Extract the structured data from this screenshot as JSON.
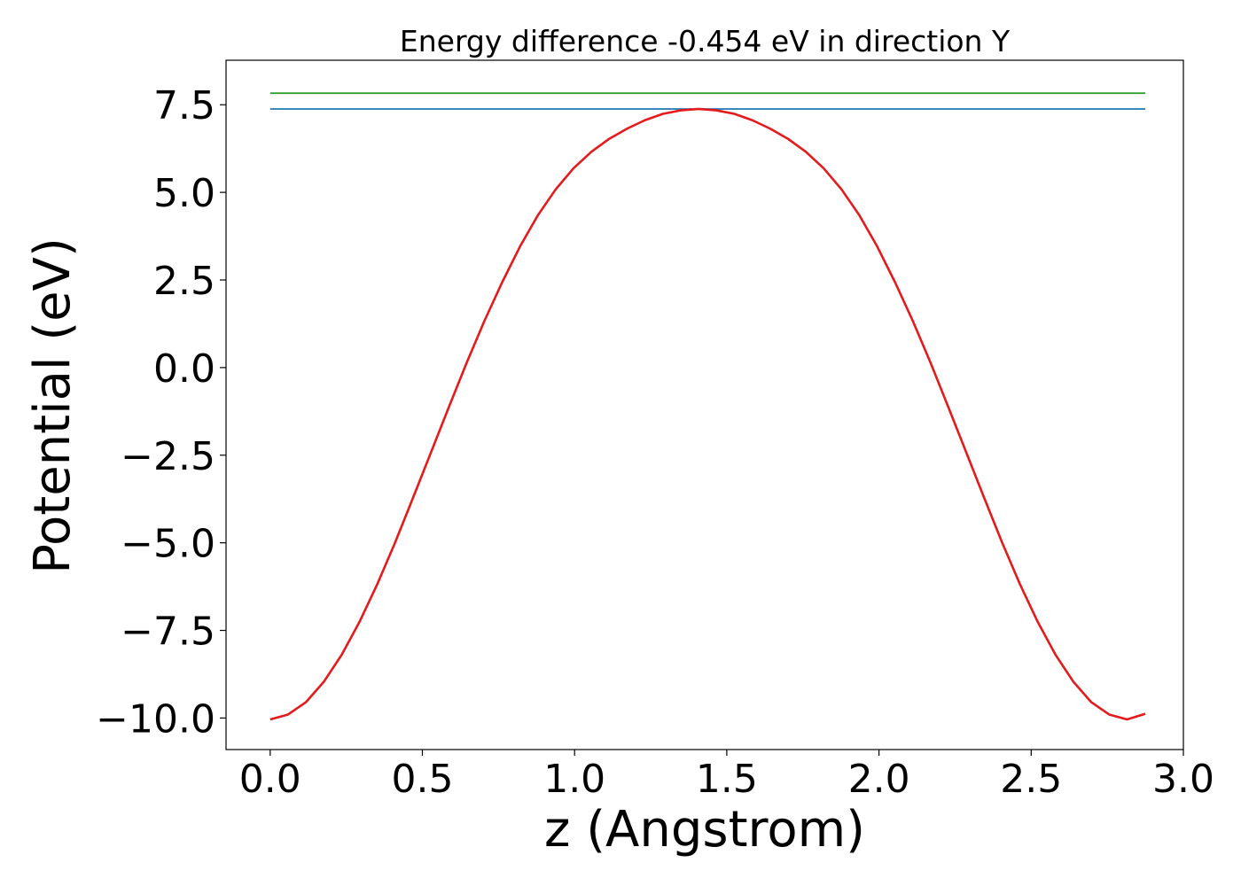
{
  "chart_data": {
    "type": "line",
    "title": "Energy difference -0.454 eV in direction Y",
    "xlabel": "z (Angstrom)",
    "ylabel": "Potential (eV)",
    "xlim": [
      -0.145,
      3.0
    ],
    "ylim": [
      -10.9,
      8.77
    ],
    "xticks": [
      0.0,
      0.5,
      1.0,
      1.5,
      2.0,
      2.5,
      3.0
    ],
    "xtick_labels": [
      "0.0",
      "0.5",
      "1.0",
      "1.5",
      "2.0",
      "2.5",
      "3.0"
    ],
    "yticks": [
      -10.0,
      -7.5,
      -5.0,
      -2.5,
      0.0,
      2.5,
      5.0,
      7.5
    ],
    "ytick_labels": [
      "−10.0",
      "−7.5",
      "−5.0",
      "−2.5",
      "0.0",
      "2.5",
      "5.0",
      "7.5"
    ],
    "grid": false,
    "legend": "none",
    "series": [
      {
        "color": "#2ca02c",
        "x": [
          0.0,
          2.875
        ],
        "y": [
          7.83,
          7.83
        ]
      },
      {
        "color": "#1f77b4",
        "x": [
          0.0,
          2.875
        ],
        "y": [
          7.38,
          7.38
        ]
      },
      {
        "color": "#e41a1c",
        "x": [
          0.0,
          0.0586,
          0.1173,
          0.1759,
          0.2346,
          0.2932,
          0.3519,
          0.4105,
          0.4691,
          0.5278,
          0.5864,
          0.6451,
          0.7037,
          0.7624,
          0.821,
          0.8797,
          0.9383,
          0.9969,
          1.0556,
          1.1142,
          1.1729,
          1.2315,
          1.2902,
          1.3488,
          1.4074,
          1.4661,
          1.5247,
          1.5834,
          1.642,
          1.7007,
          1.7593,
          1.8179,
          1.8766,
          1.9352,
          1.9939,
          2.0525,
          2.1112,
          2.1698,
          2.2284,
          2.2871,
          2.3457,
          2.4044,
          2.463,
          2.5217,
          2.5803,
          2.639,
          2.6976,
          2.7562,
          2.8149,
          2.875
        ],
        "y": [
          -10.04,
          -9.9,
          -9.55,
          -8.97,
          -8.2,
          -7.26,
          -6.18,
          -4.99,
          -3.72,
          -2.43,
          -1.14,
          0.13,
          1.33,
          2.44,
          3.46,
          4.35,
          5.09,
          5.69,
          6.16,
          6.53,
          6.82,
          7.06,
          7.24,
          7.34,
          7.38,
          7.34,
          7.24,
          7.06,
          6.82,
          6.53,
          6.16,
          5.69,
          5.09,
          4.35,
          3.46,
          2.44,
          1.33,
          0.13,
          -1.14,
          -2.43,
          -3.72,
          -4.99,
          -6.18,
          -7.26,
          -8.2,
          -8.97,
          -9.55,
          -9.9,
          -10.04,
          -9.88
        ]
      }
    ]
  }
}
